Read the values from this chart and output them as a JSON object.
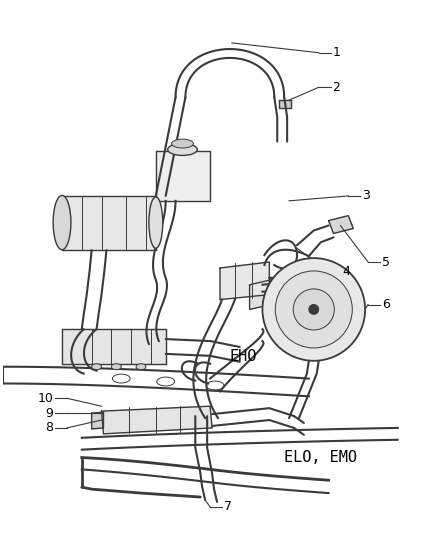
{
  "bg_color": "#ffffff",
  "line_color": "#3a3a3a",
  "label_color": "#000000",
  "figsize": [
    4.38,
    5.33
  ],
  "dpi": 100,
  "lw": 1.0
}
